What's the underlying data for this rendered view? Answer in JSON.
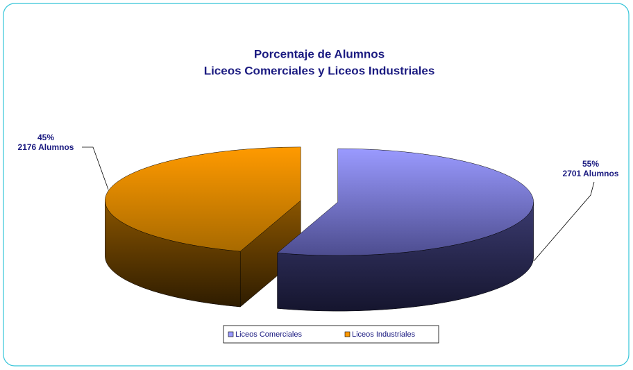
{
  "chart_data": {
    "type": "pie",
    "title": [
      "Porcentaje de Alumnos",
      "Liceos Comerciales y Liceos Industriales"
    ],
    "categories": [
      "Liceos Comerciales",
      "Liceos Industriales"
    ],
    "values": [
      55,
      45
    ],
    "value_labels": [
      "55%",
      "45%"
    ],
    "count_labels": [
      "2701 Alumnos",
      "2176 Alumnos"
    ],
    "colors": [
      "#9999ff",
      "#ff9900"
    ]
  }
}
